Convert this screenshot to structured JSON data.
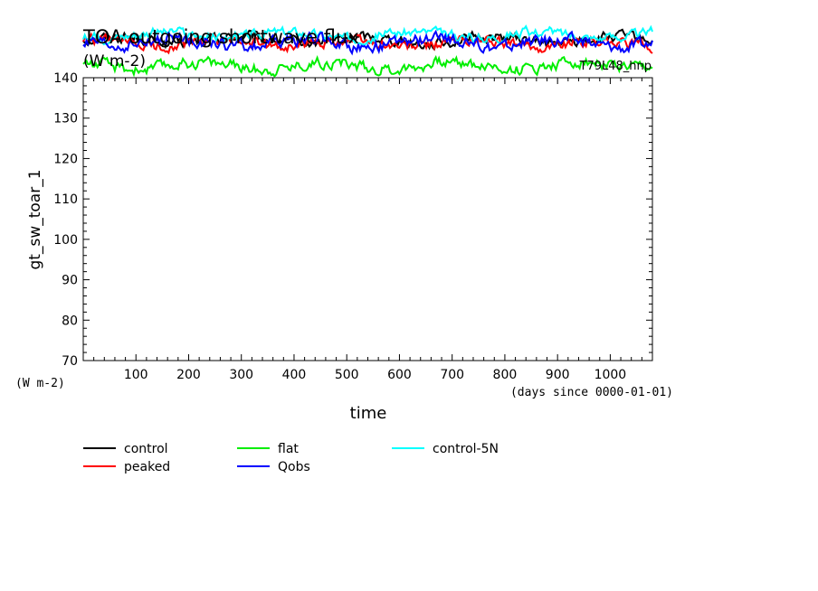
{
  "chart_data": {
    "type": "line",
    "title": "TOA outgoing shortwave flux",
    "title_units": "(W m-2)",
    "run_label": "T79L48_hnp",
    "ylabel": "gt_sw_toar_1",
    "yunits": "(W m-2)",
    "xlabel": "time",
    "xunits": "(days since 0000-01-01)",
    "xlim": [
      0,
      1080
    ],
    "ylim": [
      70,
      140
    ],
    "xticks": [
      100,
      200,
      300,
      400,
      500,
      600,
      700,
      800,
      900,
      1000
    ],
    "yticks": [
      70,
      80,
      90,
      100,
      110,
      120,
      130,
      140
    ],
    "legend_position": "bottom",
    "series": [
      {
        "name": "control",
        "color": "#000000",
        "mean": 149.3,
        "amplitude": 2.4
      },
      {
        "name": "peaked",
        "color": "#ff0000",
        "mean": 148.5,
        "amplitude": 2.4
      },
      {
        "name": "flat",
        "color": "#00ee00",
        "mean": 143.0,
        "amplitude": 2.6
      },
      {
        "name": "Qobs",
        "color": "#0000ff",
        "mean": 148.6,
        "amplitude": 2.8
      },
      {
        "name": "control-5N",
        "color": "#00ffff",
        "mean": 150.6,
        "amplitude": 2.2
      }
    ]
  }
}
